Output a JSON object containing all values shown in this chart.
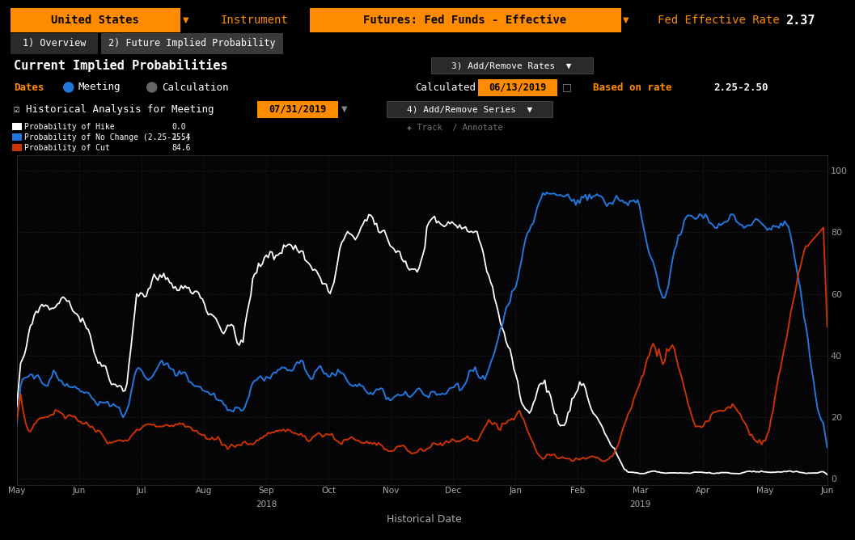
{
  "title": "United States",
  "instrument_label": "Instrument",
  "instrument_value": "Futures: Fed Funds - Effective",
  "fed_rate_label": "Fed Effective Rate",
  "fed_rate_value": "2.37",
  "tab1": "1) Overview",
  "tab2": "2) Future Implied Probability",
  "section_title": "Current Implied Probabilities",
  "add_remove_rates": "3) Add/Remove Rates",
  "dates_label": "Dates",
  "meeting_label": "Meeting",
  "calc_label": "Calculation",
  "calculated_label": "Calculated",
  "calculated_date": "06/13/2019",
  "based_on_label": "Based on rate",
  "based_on_value": "2.25-2.50",
  "hist_label": "Historical Analysis for Meeting",
  "meeting_date": "07/31/2019",
  "add_remove_series": "4) Add/Remove Series",
  "track_annotate": "Track  / Annotate",
  "xlabel": "Historical Date",
  "yticks": [
    0,
    20,
    40,
    60,
    80,
    100
  ],
  "months": [
    "May",
    "Jun",
    "Jul",
    "Aug",
    "Sep",
    "Oct",
    "Nov",
    "Dec",
    "Jan",
    "Feb",
    "Mar",
    "Apr",
    "May",
    "Jun"
  ],
  "year_labels": [
    {
      "idx": 4,
      "label": "2018"
    },
    {
      "idx": 10,
      "label": "2019"
    }
  ],
  "legend": [
    {
      "label": "Probability of Hike",
      "color": "#ffffff",
      "value": "0.0"
    },
    {
      "label": "Probability of No Change (2.25-2.5)",
      "color": "#2277dd",
      "value": "15.4"
    },
    {
      "label": "Probability of Cut",
      "color": "#cc3300",
      "value": "84.6"
    }
  ],
  "bg_color": "#000000",
  "chart_bg": "#050508",
  "orange": "#ff8c00",
  "dark_gray": "#1a1a1a",
  "mid_gray": "#333333",
  "light_gray": "#888888",
  "tab_color": "#2a2a2a",
  "grid_color": "#1e1e1e"
}
